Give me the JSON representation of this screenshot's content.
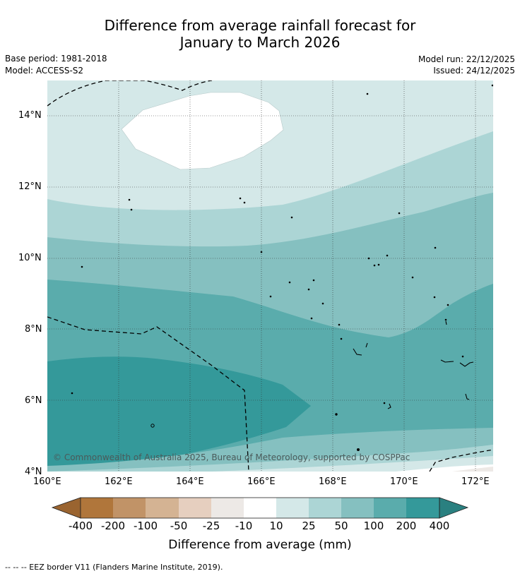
{
  "header": {
    "title_line1": "Difference from average rainfall forecast for",
    "title_line2": "January to March 2026",
    "base_period": "Base period: 1981-2018",
    "model": "Model: ACCESS-S2",
    "model_run": "Model run: 22/12/2025",
    "issued": "Issued: 24/12/2025"
  },
  "map": {
    "lon_ticks": [
      "160°E",
      "162°E",
      "164°E",
      "166°E",
      "168°E",
      "170°E",
      "172°E"
    ],
    "lat_ticks": [
      "14°N",
      "12°N",
      "10°N",
      "8°N",
      "6°N",
      "4°N"
    ],
    "lon_range": [
      160,
      172.5
    ],
    "lat_range": [
      4,
      15
    ],
    "copyright": "© Commonwealth of Australia 2025, Bureau of Meteorology, supported by COSPPac"
  },
  "colorbar": {
    "title": "Difference from average (mm)",
    "labels": [
      "-400",
      "-200",
      "-100",
      "-50",
      "-25",
      "-10",
      "10",
      "25",
      "50",
      "100",
      "200",
      "400"
    ],
    "colors": [
      "#9a6430",
      "#b0763b",
      "#c19367",
      "#d4b393",
      "#e6cfbf",
      "#ede9e6",
      "#ffffff",
      "#d4e8e8",
      "#acd5d5",
      "#85c0c0",
      "#5aacac",
      "#34999a",
      "#2a8080"
    ]
  },
  "footer": {
    "legend": "--  --  -- EEZ border V11 (Flanders Marine Institute, 2019)."
  }
}
